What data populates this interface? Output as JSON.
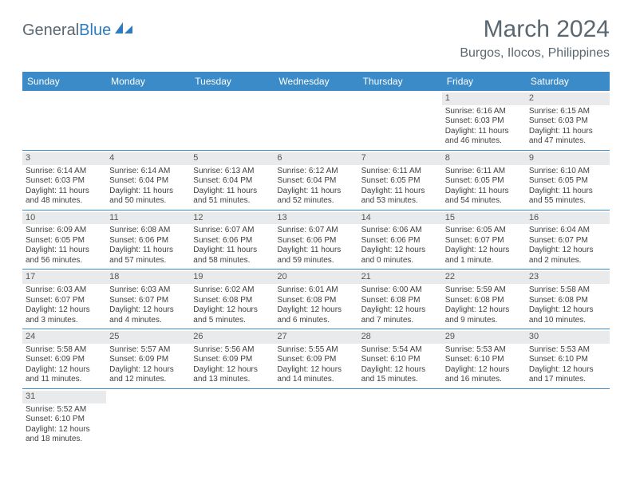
{
  "brand": {
    "part1": "General",
    "part2": "Blue"
  },
  "title": "March 2024",
  "location": "Burgos, Ilocos, Philippines",
  "colors": {
    "header_bg": "#3b8bc8",
    "header_text": "#ffffff",
    "daynum_bg": "#e9eaeb",
    "text": "#404040",
    "brand_gray": "#5a6770",
    "brand_blue": "#2f7bbf",
    "row_border": "#3b8bc8"
  },
  "day_names": [
    "Sunday",
    "Monday",
    "Tuesday",
    "Wednesday",
    "Thursday",
    "Friday",
    "Saturday"
  ],
  "weeks": [
    [
      {
        "empty": true
      },
      {
        "empty": true
      },
      {
        "empty": true
      },
      {
        "empty": true
      },
      {
        "empty": true
      },
      {
        "n": "1",
        "sunrise": "Sunrise: 6:16 AM",
        "sunset": "Sunset: 6:03 PM",
        "day1": "Daylight: 11 hours",
        "day2": "and 46 minutes."
      },
      {
        "n": "2",
        "sunrise": "Sunrise: 6:15 AM",
        "sunset": "Sunset: 6:03 PM",
        "day1": "Daylight: 11 hours",
        "day2": "and 47 minutes."
      }
    ],
    [
      {
        "n": "3",
        "sunrise": "Sunrise: 6:14 AM",
        "sunset": "Sunset: 6:03 PM",
        "day1": "Daylight: 11 hours",
        "day2": "and 48 minutes."
      },
      {
        "n": "4",
        "sunrise": "Sunrise: 6:14 AM",
        "sunset": "Sunset: 6:04 PM",
        "day1": "Daylight: 11 hours",
        "day2": "and 50 minutes."
      },
      {
        "n": "5",
        "sunrise": "Sunrise: 6:13 AM",
        "sunset": "Sunset: 6:04 PM",
        "day1": "Daylight: 11 hours",
        "day2": "and 51 minutes."
      },
      {
        "n": "6",
        "sunrise": "Sunrise: 6:12 AM",
        "sunset": "Sunset: 6:04 PM",
        "day1": "Daylight: 11 hours",
        "day2": "and 52 minutes."
      },
      {
        "n": "7",
        "sunrise": "Sunrise: 6:11 AM",
        "sunset": "Sunset: 6:05 PM",
        "day1": "Daylight: 11 hours",
        "day2": "and 53 minutes."
      },
      {
        "n": "8",
        "sunrise": "Sunrise: 6:11 AM",
        "sunset": "Sunset: 6:05 PM",
        "day1": "Daylight: 11 hours",
        "day2": "and 54 minutes."
      },
      {
        "n": "9",
        "sunrise": "Sunrise: 6:10 AM",
        "sunset": "Sunset: 6:05 PM",
        "day1": "Daylight: 11 hours",
        "day2": "and 55 minutes."
      }
    ],
    [
      {
        "n": "10",
        "sunrise": "Sunrise: 6:09 AM",
        "sunset": "Sunset: 6:05 PM",
        "day1": "Daylight: 11 hours",
        "day2": "and 56 minutes."
      },
      {
        "n": "11",
        "sunrise": "Sunrise: 6:08 AM",
        "sunset": "Sunset: 6:06 PM",
        "day1": "Daylight: 11 hours",
        "day2": "and 57 minutes."
      },
      {
        "n": "12",
        "sunrise": "Sunrise: 6:07 AM",
        "sunset": "Sunset: 6:06 PM",
        "day1": "Daylight: 11 hours",
        "day2": "and 58 minutes."
      },
      {
        "n": "13",
        "sunrise": "Sunrise: 6:07 AM",
        "sunset": "Sunset: 6:06 PM",
        "day1": "Daylight: 11 hours",
        "day2": "and 59 minutes."
      },
      {
        "n": "14",
        "sunrise": "Sunrise: 6:06 AM",
        "sunset": "Sunset: 6:06 PM",
        "day1": "Daylight: 12 hours",
        "day2": "and 0 minutes."
      },
      {
        "n": "15",
        "sunrise": "Sunrise: 6:05 AM",
        "sunset": "Sunset: 6:07 PM",
        "day1": "Daylight: 12 hours",
        "day2": "and 1 minute."
      },
      {
        "n": "16",
        "sunrise": "Sunrise: 6:04 AM",
        "sunset": "Sunset: 6:07 PM",
        "day1": "Daylight: 12 hours",
        "day2": "and 2 minutes."
      }
    ],
    [
      {
        "n": "17",
        "sunrise": "Sunrise: 6:03 AM",
        "sunset": "Sunset: 6:07 PM",
        "day1": "Daylight: 12 hours",
        "day2": "and 3 minutes."
      },
      {
        "n": "18",
        "sunrise": "Sunrise: 6:03 AM",
        "sunset": "Sunset: 6:07 PM",
        "day1": "Daylight: 12 hours",
        "day2": "and 4 minutes."
      },
      {
        "n": "19",
        "sunrise": "Sunrise: 6:02 AM",
        "sunset": "Sunset: 6:08 PM",
        "day1": "Daylight: 12 hours",
        "day2": "and 5 minutes."
      },
      {
        "n": "20",
        "sunrise": "Sunrise: 6:01 AM",
        "sunset": "Sunset: 6:08 PM",
        "day1": "Daylight: 12 hours",
        "day2": "and 6 minutes."
      },
      {
        "n": "21",
        "sunrise": "Sunrise: 6:00 AM",
        "sunset": "Sunset: 6:08 PM",
        "day1": "Daylight: 12 hours",
        "day2": "and 7 minutes."
      },
      {
        "n": "22",
        "sunrise": "Sunrise: 5:59 AM",
        "sunset": "Sunset: 6:08 PM",
        "day1": "Daylight: 12 hours",
        "day2": "and 9 minutes."
      },
      {
        "n": "23",
        "sunrise": "Sunrise: 5:58 AM",
        "sunset": "Sunset: 6:08 PM",
        "day1": "Daylight: 12 hours",
        "day2": "and 10 minutes."
      }
    ],
    [
      {
        "n": "24",
        "sunrise": "Sunrise: 5:58 AM",
        "sunset": "Sunset: 6:09 PM",
        "day1": "Daylight: 12 hours",
        "day2": "and 11 minutes."
      },
      {
        "n": "25",
        "sunrise": "Sunrise: 5:57 AM",
        "sunset": "Sunset: 6:09 PM",
        "day1": "Daylight: 12 hours",
        "day2": "and 12 minutes."
      },
      {
        "n": "26",
        "sunrise": "Sunrise: 5:56 AM",
        "sunset": "Sunset: 6:09 PM",
        "day1": "Daylight: 12 hours",
        "day2": "and 13 minutes."
      },
      {
        "n": "27",
        "sunrise": "Sunrise: 5:55 AM",
        "sunset": "Sunset: 6:09 PM",
        "day1": "Daylight: 12 hours",
        "day2": "and 14 minutes."
      },
      {
        "n": "28",
        "sunrise": "Sunrise: 5:54 AM",
        "sunset": "Sunset: 6:10 PM",
        "day1": "Daylight: 12 hours",
        "day2": "and 15 minutes."
      },
      {
        "n": "29",
        "sunrise": "Sunrise: 5:53 AM",
        "sunset": "Sunset: 6:10 PM",
        "day1": "Daylight: 12 hours",
        "day2": "and 16 minutes."
      },
      {
        "n": "30",
        "sunrise": "Sunrise: 5:53 AM",
        "sunset": "Sunset: 6:10 PM",
        "day1": "Daylight: 12 hours",
        "day2": "and 17 minutes."
      }
    ],
    [
      {
        "n": "31",
        "sunrise": "Sunrise: 5:52 AM",
        "sunset": "Sunset: 6:10 PM",
        "day1": "Daylight: 12 hours",
        "day2": "and 18 minutes."
      },
      {
        "empty": true
      },
      {
        "empty": true
      },
      {
        "empty": true
      },
      {
        "empty": true
      },
      {
        "empty": true
      },
      {
        "empty": true
      }
    ]
  ]
}
